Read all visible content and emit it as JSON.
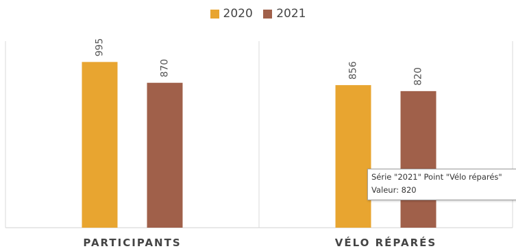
{
  "chart_data": {
    "type": "bar",
    "categories": [
      "PARTICIPANTS",
      "VÉLO RÉPARÉS"
    ],
    "series": [
      {
        "name": "2020",
        "values": [
          995,
          856
        ],
        "color": "#E8A530"
      },
      {
        "name": "2021",
        "values": [
          870,
          820
        ],
        "color": "#A0604A"
      }
    ],
    "ylim": [
      0,
      1120
    ],
    "grid": false,
    "legend_position": "top-center",
    "data_labels": true
  },
  "tooltip": {
    "line1": "Série \"2021\" Point \"Vélo réparés\"",
    "line2": "Valeur: 820"
  }
}
